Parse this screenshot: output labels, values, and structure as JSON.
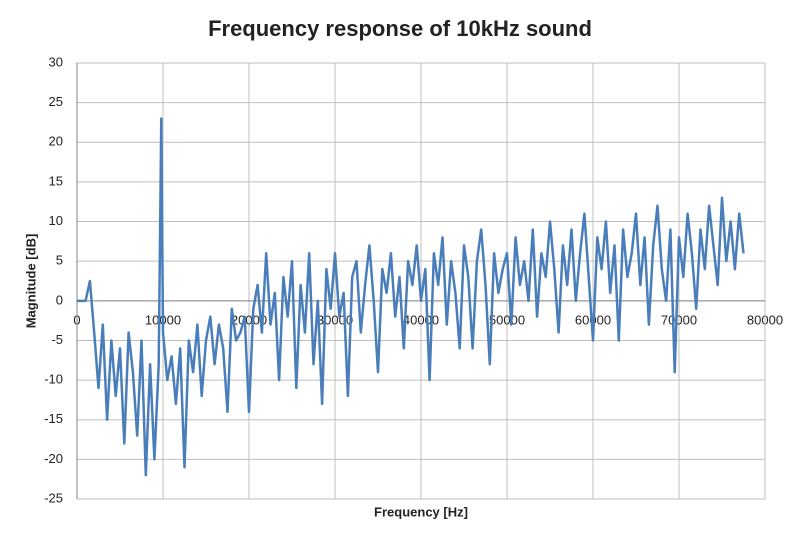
{
  "chart_data": {
    "type": "line",
    "title": "Frequency response of 10kHz sound",
    "x_label": "Frequency [Hz]",
    "y_label": "Magnitude [dB]",
    "xlim": [
      0,
      80000
    ],
    "xticks": [
      0,
      10000,
      20000,
      30000,
      40000,
      50000,
      60000,
      70000,
      80000
    ],
    "ylim": [
      -25,
      30
    ],
    "yticks": [
      -25,
      -20,
      -15,
      -10,
      -5,
      0,
      5,
      10,
      15,
      20,
      25,
      30
    ],
    "grid": true,
    "x": [
      0,
      500,
      1000,
      1500,
      2000,
      2500,
      3000,
      3500,
      4000,
      4500,
      5000,
      5500,
      6000,
      6500,
      7000,
      7500,
      8000,
      8500,
      9000,
      9500,
      9800,
      10000,
      10500,
      11000,
      11500,
      12000,
      12500,
      13000,
      13500,
      14000,
      14500,
      15000,
      15500,
      16000,
      16500,
      17000,
      17500,
      18000,
      18500,
      19000,
      19500,
      20000,
      20500,
      21000,
      21500,
      22000,
      22500,
      23000,
      23500,
      24000,
      24500,
      25000,
      25500,
      26000,
      26500,
      27000,
      27500,
      28000,
      28500,
      29000,
      29500,
      30000,
      30500,
      31000,
      31500,
      32000,
      32500,
      33000,
      33500,
      34000,
      34500,
      35000,
      35500,
      36000,
      36500,
      37000,
      37500,
      38000,
      38500,
      39000,
      39500,
      40000,
      40500,
      41000,
      41500,
      42000,
      42500,
      43000,
      43500,
      44000,
      44500,
      45000,
      45500,
      46000,
      46500,
      47000,
      47500,
      48000,
      48500,
      49000,
      49500,
      50000,
      50500,
      51000,
      51500,
      52000,
      52500,
      53000,
      53500,
      54000,
      54500,
      55000,
      55500,
      56000,
      56500,
      57000,
      57500,
      58000,
      58500,
      59000,
      59500,
      60000,
      60500,
      61000,
      61500,
      62000,
      62500,
      63000,
      63500,
      64000,
      64500,
      65000,
      65500,
      66000,
      66500,
      67000,
      67500,
      68000,
      68500,
      69000,
      69500,
      70000,
      70500,
      71000,
      71500,
      72000,
      72500,
      73000,
      73500,
      74000,
      74500,
      75000,
      75500,
      76000,
      76500,
      77000,
      77500
    ],
    "series": [
      {
        "name": "Magnitude",
        "color": "#4a7ebb",
        "values": [
          0,
          0,
          0,
          2.5,
          -4,
          -11,
          -3,
          -15,
          -5,
          -12,
          -6,
          -18,
          -4,
          -9,
          -17,
          -5,
          -22,
          -8,
          -20,
          -8,
          23,
          -4,
          -10,
          -7,
          -13,
          -6,
          -21,
          -5,
          -9,
          -3,
          -12,
          -5,
          -2,
          -8,
          -3,
          -6,
          -14,
          -1,
          -5,
          -4,
          -2,
          -14,
          -1,
          2,
          -4,
          6,
          -3,
          1,
          -10,
          3,
          -2,
          5,
          -11,
          2,
          -4,
          6,
          -8,
          0,
          -13,
          4,
          -1,
          6,
          -2,
          1,
          -12,
          3,
          5,
          -4,
          2,
          7,
          0,
          -9,
          4,
          1,
          6,
          -2,
          3,
          -6,
          5,
          2,
          7,
          0,
          4,
          -10,
          6,
          2,
          8,
          -3,
          5,
          1,
          -6,
          7,
          3,
          -6,
          5,
          9,
          2,
          -8,
          6,
          1,
          4,
          6,
          -3,
          8,
          2,
          5,
          0,
          9,
          -2,
          6,
          3,
          10,
          4,
          -4,
          7,
          2,
          9,
          0,
          6,
          11,
          3,
          -5,
          8,
          4,
          10,
          1,
          7,
          -5,
          9,
          3,
          6,
          11,
          2,
          8,
          -3,
          7,
          12,
          4,
          0,
          9,
          -9,
          8,
          3,
          11,
          6,
          -1,
          9,
          4,
          12,
          7,
          2,
          13,
          5,
          10,
          4,
          11,
          6
        ]
      }
    ]
  }
}
